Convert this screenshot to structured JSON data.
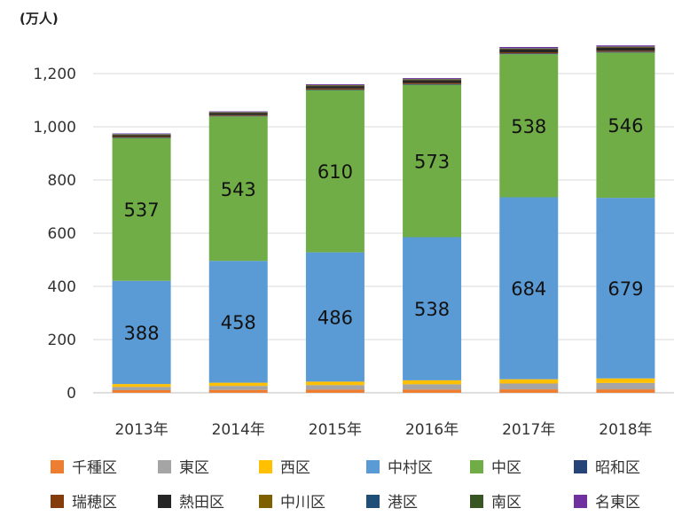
{
  "chart_data": {
    "type": "bar",
    "stacked": true,
    "unit_label": "(万人)",
    "title": "",
    "xlabel": "",
    "ylabel": "",
    "ylim": [
      0,
      1300
    ],
    "yticks": [
      0,
      200,
      400,
      600,
      800,
      1000,
      1200
    ],
    "ytick_labels": [
      "0",
      "200",
      "400",
      "600",
      "800",
      "1,000",
      "1,200"
    ],
    "grid": true,
    "legend_position": "bottom",
    "categories": [
      "2013年",
      "2014年",
      "2015年",
      "2016年",
      "2017年",
      "2018年"
    ],
    "series": [
      {
        "name": "千種区",
        "color": "#ED7D31",
        "values": [
          10,
          11,
          12,
          12,
          13,
          13
        ]
      },
      {
        "name": "東区",
        "color": "#A5A5A5",
        "values": [
          12,
          15,
          17,
          20,
          22,
          24
        ]
      },
      {
        "name": "西区",
        "color": "#FFC000",
        "values": [
          11,
          12,
          13,
          15,
          16,
          17
        ]
      },
      {
        "name": "中村区",
        "color": "#5B9BD5",
        "values": [
          388,
          458,
          486,
          538,
          684,
          679
        ]
      },
      {
        "name": "中区",
        "color": "#70AD47",
        "values": [
          537,
          543,
          610,
          573,
          538,
          546
        ]
      },
      {
        "name": "昭和区",
        "color": "#264478",
        "values": [
          2,
          2,
          2,
          3,
          3,
          3
        ]
      },
      {
        "name": "瑞穂区",
        "color": "#843C0C",
        "values": [
          3,
          3,
          4,
          4,
          4,
          4
        ]
      },
      {
        "name": "熱田区",
        "color": "#262626",
        "values": [
          6,
          8,
          9,
          11,
          12,
          12
        ]
      },
      {
        "name": "中川区",
        "color": "#7F6000",
        "values": [
          2,
          2,
          2,
          2,
          2,
          2
        ]
      },
      {
        "name": "港区",
        "color": "#1F4E79",
        "values": [
          1,
          1,
          1,
          1,
          1,
          1
        ]
      },
      {
        "name": "南区",
        "color": "#375623",
        "values": [
          1,
          1,
          1,
          1,
          1,
          1
        ]
      },
      {
        "name": "名東区",
        "color": "#7030A0",
        "values": [
          2,
          2,
          3,
          3,
          4,
          4
        ]
      }
    ],
    "data_labels": {
      "中村区": [
        "388",
        "458",
        "486",
        "538",
        "684",
        "679"
      ],
      "中区": [
        "537",
        "543",
        "610",
        "573",
        "538",
        "546"
      ]
    }
  }
}
